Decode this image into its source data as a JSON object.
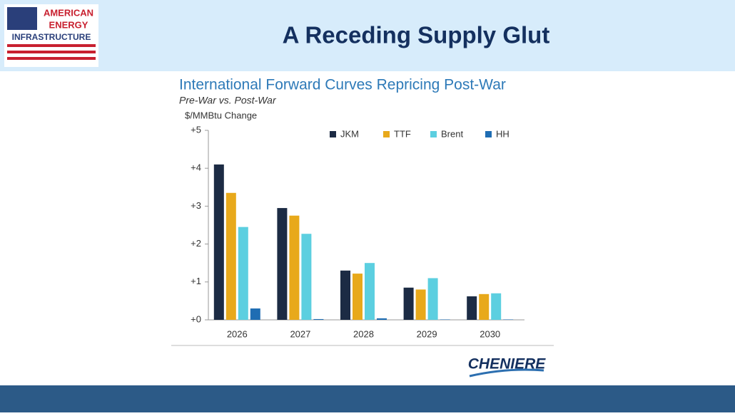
{
  "header": {
    "title": "A Receding Supply Glut",
    "logo_lines": [
      "AMERICAN",
      "ENERGY",
      "INFRASTRUCTURE"
    ]
  },
  "footer_logo": "CHENIERE",
  "chart_data": {
    "type": "bar",
    "title": "International Forward Curves Repricing Post-War",
    "subtitle": "Pre-War vs. Post-War",
    "y_label": "$/MMBtu Change",
    "categories": [
      "2026",
      "2027",
      "2028",
      "2029",
      "2030"
    ],
    "series": [
      {
        "name": "JKM",
        "color": "#1c2b44",
        "values": [
          4.1,
          2.95,
          1.3,
          0.85,
          0.62
        ]
      },
      {
        "name": "TTF",
        "color": "#e8a91b",
        "values": [
          3.35,
          2.75,
          1.22,
          0.8,
          0.68
        ]
      },
      {
        "name": "Brent",
        "color": "#5ccfe0",
        "values": [
          2.45,
          2.27,
          1.5,
          1.1,
          0.7
        ]
      },
      {
        "name": "HH",
        "color": "#1f6db3",
        "values": [
          0.3,
          0.02,
          0.04,
          0.01,
          0.01
        ]
      }
    ],
    "ylim": [
      0,
      5
    ],
    "yticks": [
      {
        "value": 0,
        "label": "+0"
      },
      {
        "value": 1,
        "label": "+1"
      },
      {
        "value": 2,
        "label": "+2"
      },
      {
        "value": 3,
        "label": "+3"
      },
      {
        "value": 4,
        "label": "+4"
      },
      {
        "value": 5,
        "label": "+5"
      }
    ],
    "grid": false,
    "legend": "top"
  }
}
